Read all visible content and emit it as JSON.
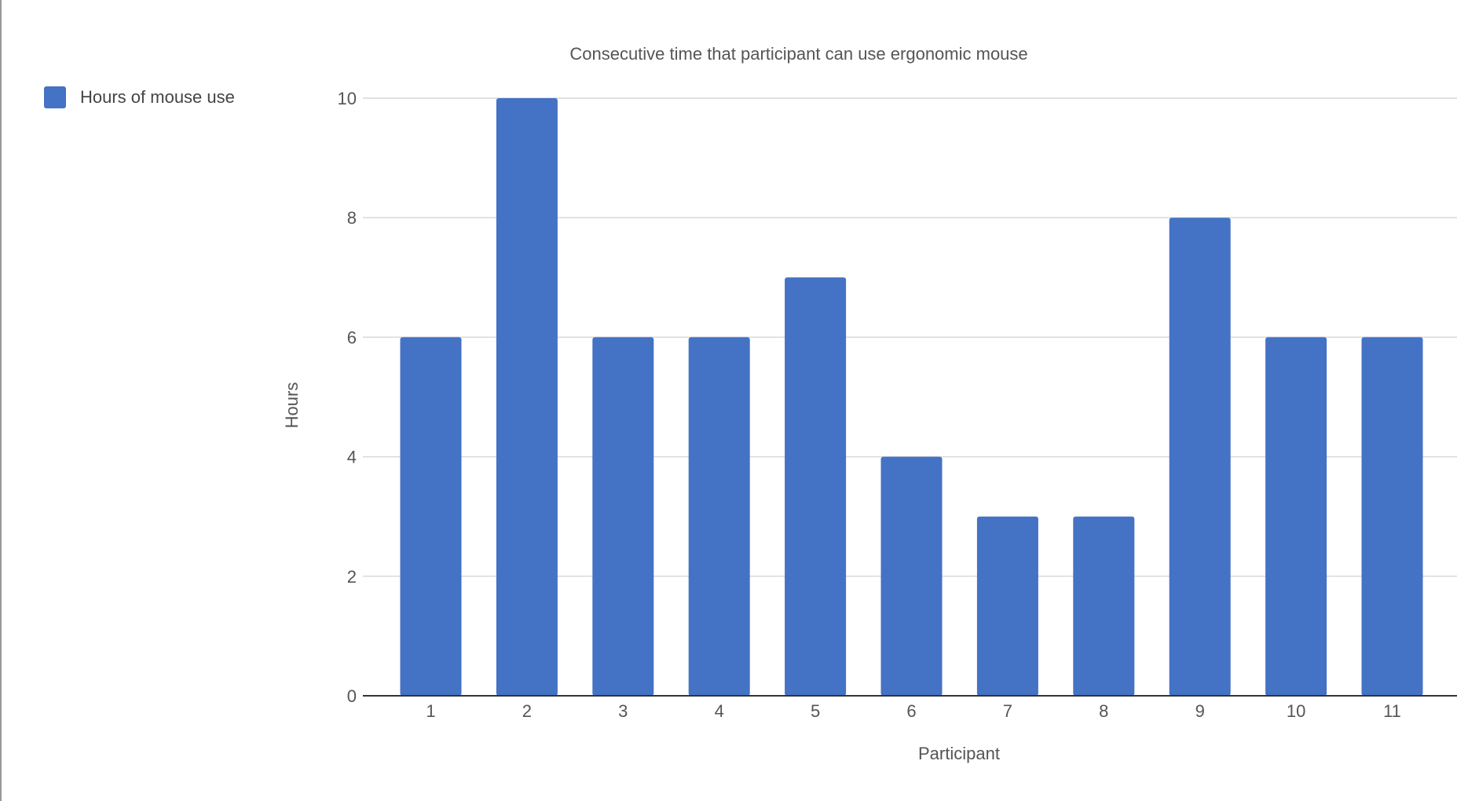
{
  "chart_data": {
    "type": "bar",
    "title": "Consecutive time that participant can use ergonomic mouse",
    "xlabel": "Participant",
    "ylabel": "Hours",
    "categories": [
      "1",
      "2",
      "3",
      "4",
      "5",
      "6",
      "7",
      "8",
      "9",
      "10",
      "11"
    ],
    "series": [
      {
        "name": "Hours of mouse use",
        "values": [
          6,
          10,
          6,
          6,
          7,
          4,
          3,
          3,
          8,
          6,
          6
        ],
        "color": "#4472c4"
      }
    ],
    "ylim": [
      0,
      10
    ],
    "yticks": [
      "0",
      "2",
      "4",
      "6",
      "8",
      "10"
    ],
    "grid": true,
    "legend_position": "left"
  }
}
